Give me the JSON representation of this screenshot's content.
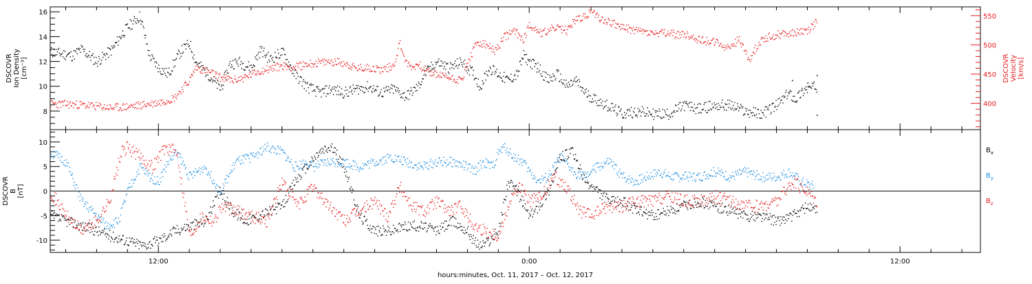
{
  "xaxis": {
    "label": "hours:minutes, Oct. 11, 2017 – Oct. 12, 2017",
    "range_hours": [
      -15.5,
      14.6
    ],
    "tick_labels": [
      {
        "hour": -12,
        "text": "12:00"
      },
      {
        "hour": 0,
        "text": "0:00"
      },
      {
        "hour": 12,
        "text": "12:00"
      }
    ]
  },
  "colors": {
    "black": "#000000",
    "red": "#e8191c",
    "blue": "#1f8fe0"
  },
  "chart_data": [
    {
      "type": "scatter",
      "panel": "top",
      "ylabel_left": [
        "DSCOVR",
        "Ion Density",
        "[cm⁻³]"
      ],
      "ylabel_right": [
        "DSCOVR",
        "Velocity",
        "[km/s]"
      ],
      "ylim_left": [
        6.5,
        16.4
      ],
      "yticks_left": [
        8,
        10,
        12,
        14,
        16
      ],
      "ylim_right": [
        355,
        565
      ],
      "yticks_right": [
        400,
        450,
        500,
        550
      ],
      "series": [
        {
          "axis": "left",
          "color": "#000000",
          "x": [
            -15.5,
            -14.8,
            -14.5,
            -14.0,
            -13.5,
            -13.2,
            -13.0,
            -12.6,
            -12.3,
            -12.0,
            -11.7,
            -11.3,
            -11.0,
            -10.8,
            -10.4,
            -10.0,
            -9.7,
            -9.4,
            -9.0,
            -8.7,
            -8.4,
            -8.0,
            -7.6,
            -7.2,
            -6.8,
            -6.4,
            -6.0,
            -5.6,
            -5.2,
            -4.8,
            -4.4,
            -4.0,
            -3.6,
            -3.4,
            -3.2,
            -3.0,
            -2.6,
            -2.2,
            -1.8,
            -1.6,
            -1.3,
            -1.0,
            -0.7,
            -0.4,
            -0.2,
            0.0,
            0.3,
            0.6,
            0.9,
            1.2,
            1.5,
            1.8,
            2.1,
            2.5,
            3.0,
            3.5,
            4.0,
            4.5,
            5.0,
            5.5,
            6.0,
            6.5,
            7.0,
            7.5,
            8.0,
            8.4,
            8.6,
            8.9,
            9.3
          ],
          "y": [
            12.8,
            12.5,
            13.0,
            12.0,
            13.0,
            14.2,
            14.8,
            15.7,
            12.5,
            11.5,
            11.0,
            12.8,
            13.5,
            12.0,
            11.0,
            9.8,
            11.8,
            12.0,
            11.5,
            13.0,
            12.2,
            12.8,
            11.0,
            10.0,
            9.5,
            9.8,
            9.5,
            9.8,
            10.0,
            9.5,
            9.8,
            9.2,
            10.0,
            11.0,
            11.5,
            12.0,
            11.5,
            12.0,
            11.0,
            10.0,
            11.5,
            11.0,
            10.5,
            11.0,
            12.5,
            12.0,
            11.5,
            10.5,
            11.0,
            10.0,
            10.5,
            9.5,
            9.0,
            8.5,
            7.8,
            8.0,
            7.8,
            7.8,
            8.5,
            8.2,
            8.5,
            8.5,
            8.0,
            7.8,
            8.5,
            9.5,
            9.0,
            9.8,
            10.0
          ],
          "extra_points": [
            {
              "x": 8.5,
              "y": 10.5
            },
            {
              "x": 9.0,
              "y": 10.3
            },
            {
              "x": 9.3,
              "y": 10.9
            },
            {
              "x": 9.3,
              "y": 7.7
            }
          ]
        },
        {
          "axis": "right",
          "color": "#e8191c",
          "x": [
            -15.5,
            -14.5,
            -13.5,
            -13.0,
            -12.5,
            -12.0,
            -11.5,
            -11.0,
            -10.8,
            -10.4,
            -10.0,
            -9.6,
            -9.2,
            -8.8,
            -8.4,
            -8.0,
            -7.6,
            -7.2,
            -6.8,
            -6.4,
            -6.0,
            -5.6,
            -5.2,
            -4.8,
            -4.4,
            -4.2,
            -4.0,
            -3.8,
            -3.6,
            -3.3,
            -3.0,
            -2.6,
            -2.2,
            -2.0,
            -1.7,
            -1.4,
            -1.1,
            -0.8,
            -0.5,
            -0.2,
            0.0,
            0.4,
            0.8,
            1.2,
            1.5,
            1.8,
            2.0,
            2.3,
            2.6,
            3.0,
            3.5,
            4.0,
            4.5,
            5.0,
            5.5,
            6.0,
            6.4,
            6.8,
            7.1,
            7.5,
            7.8,
            8.2,
            8.6,
            9.0,
            9.3
          ],
          "y": [
            400,
            398,
            393,
            395,
            398,
            402,
            410,
            440,
            462,
            455,
            445,
            440,
            445,
            455,
            460,
            465,
            462,
            468,
            470,
            472,
            470,
            460,
            462,
            458,
            465,
            505,
            470,
            462,
            468,
            455,
            450,
            445,
            440,
            470,
            505,
            500,
            490,
            515,
            525,
            510,
            535,
            520,
            530,
            525,
            545,
            548,
            560,
            545,
            540,
            530,
            525,
            520,
            520,
            518,
            510,
            505,
            495,
            510,
            475,
            510,
            515,
            520,
            522,
            525,
            540
          ]
        }
      ]
    },
    {
      "type": "scatter",
      "panel": "bottom",
      "ylabel_left": [
        "DSCOVR",
        "B",
        "[nT]"
      ],
      "ylim": [
        -12.5,
        12.5
      ],
      "yticks": [
        -10,
        -5,
        0,
        5,
        10
      ],
      "zero_line": true,
      "legend": [
        {
          "label": "B",
          "sub": "x",
          "color": "#000000"
        },
        {
          "label": "B",
          "sub": "y",
          "color": "#1f8fe0"
        },
        {
          "label": "B",
          "sub": "z",
          "color": "#e8191c"
        }
      ],
      "series": [
        {
          "name": "Bx",
          "color": "#000000",
          "x": [
            -15.5,
            -15.0,
            -14.5,
            -14.0,
            -13.6,
            -13.0,
            -12.5,
            -12.0,
            -11.5,
            -11.0,
            -10.5,
            -10.0,
            -9.6,
            -9.2,
            -8.8,
            -8.4,
            -8.0,
            -7.6,
            -7.2,
            -6.8,
            -6.4,
            -6.0,
            -5.5,
            -5.0,
            -4.5,
            -4.0,
            -3.5,
            -3.0,
            -2.5,
            -2.0,
            -1.8,
            -1.6,
            -1.3,
            -1.0,
            -0.7,
            -0.4,
            0.0,
            0.3,
            0.6,
            1.0,
            1.4,
            1.8,
            2.2,
            2.6,
            3.0,
            3.5,
            4.0,
            4.5,
            5.0,
            5.5,
            6.0,
            6.5,
            7.0,
            7.5,
            8.0,
            8.5,
            9.0,
            9.3
          ],
          "y": [
            -5,
            -6,
            -7,
            -8,
            -9,
            -10,
            -11,
            -10,
            -8,
            -7,
            -6,
            0,
            -4,
            -6,
            -5,
            -4,
            -3,
            2,
            5,
            8,
            9,
            5,
            -5,
            -8,
            -8,
            -7,
            -7,
            -8,
            -6,
            -8,
            -10,
            -11,
            -10,
            -8,
            2,
            0,
            -5,
            -3,
            0,
            7,
            8,
            2,
            0,
            -2,
            -2,
            -4,
            -5,
            -4,
            -3,
            -2,
            -3,
            -4,
            -5,
            -5,
            -6,
            -5,
            -3,
            -4
          ]
        },
        {
          "name": "By",
          "color": "#1f8fe0",
          "x": [
            -15.5,
            -15.0,
            -14.5,
            -14.0,
            -13.7,
            -13.3,
            -13.0,
            -12.6,
            -12.3,
            -12.0,
            -11.7,
            -11.4,
            -11.0,
            -10.5,
            -10.0,
            -9.5,
            -9.0,
            -8.5,
            -8.0,
            -7.6,
            -7.2,
            -7.0,
            -6.5,
            -6.0,
            -5.5,
            -5.0,
            -4.5,
            -4.0,
            -3.5,
            -3.0,
            -2.5,
            -2.0,
            -1.8,
            -1.5,
            -1.2,
            -1.0,
            -0.8,
            -0.5,
            -0.2,
            0.0,
            0.3,
            0.6,
            1.0,
            1.4,
            1.8,
            2.2,
            2.6,
            3.0,
            3.4,
            3.8,
            4.2,
            4.6,
            5.0,
            5.5,
            6.0,
            6.5,
            7.0,
            7.5,
            8.0,
            8.4,
            8.8,
            9.2
          ],
          "y": [
            8,
            6,
            -2,
            -5,
            -7,
            -6,
            0,
            5,
            3,
            2,
            6,
            8,
            3,
            5,
            0,
            6,
            7,
            9,
            8,
            5,
            6,
            5,
            6,
            6,
            5,
            6,
            7,
            6,
            5,
            6,
            6,
            5,
            4,
            6,
            5,
            8,
            9,
            7,
            6,
            4,
            2,
            3,
            7,
            4,
            3,
            5,
            6,
            3,
            2,
            3,
            4,
            3,
            3,
            3,
            4,
            3,
            4,
            3,
            3,
            4,
            2,
            1
          ]
        },
        {
          "name": "Bz",
          "color": "#e8191c",
          "x": [
            -15.5,
            -15.0,
            -14.5,
            -14.0,
            -13.6,
            -13.2,
            -13.0,
            -12.6,
            -12.2,
            -11.8,
            -11.4,
            -11.0,
            -10.6,
            -10.2,
            -10.0,
            -9.5,
            -9.0,
            -8.5,
            -8.0,
            -7.5,
            -7.0,
            -6.5,
            -6.0,
            -5.5,
            -5.0,
            -4.6,
            -4.2,
            -3.8,
            -3.4,
            -3.0,
            -2.6,
            -2.2,
            -1.8,
            -1.4,
            -1.0,
            -0.6,
            -0.3,
            0.0,
            0.4,
            0.8,
            1.2,
            1.6,
            2.0,
            2.5,
            3.0,
            3.5,
            4.0,
            4.5,
            5.0,
            5.5,
            6.0,
            6.5,
            7.0,
            7.5,
            8.0,
            8.5,
            9.0,
            9.3
          ],
          "y": [
            0,
            -5,
            -8,
            -6,
            -2,
            8,
            9,
            7,
            5,
            9,
            8,
            -9,
            -5,
            -6,
            -3,
            -4,
            -5,
            -6,
            2,
            -3,
            1,
            -3,
            -6,
            -4,
            -2,
            -5,
            1,
            -3,
            -4,
            -2,
            -4,
            -3,
            -7,
            -8,
            -9,
            -1,
            1,
            -2,
            -1,
            3,
            1,
            -4,
            -5,
            -3,
            -3,
            -2,
            -2,
            -1,
            -2,
            -2,
            -1,
            -2,
            -3,
            -3,
            -2,
            2,
            0,
            -2
          ]
        }
      ]
    }
  ]
}
